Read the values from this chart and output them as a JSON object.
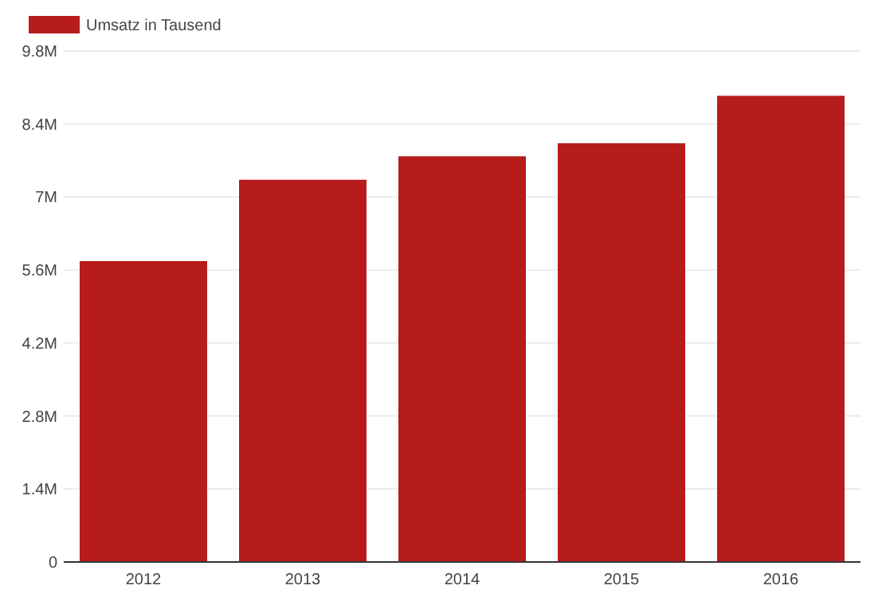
{
  "chart_data": {
    "type": "bar",
    "categories": [
      "2012",
      "2013",
      "2014",
      "2015",
      "2016"
    ],
    "series": [
      {
        "name": "Umsatz in Tausend",
        "color": "#b71c1c",
        "values": [
          5770000,
          7330000,
          7780000,
          8030000,
          8940000
        ]
      }
    ],
    "ylim": [
      0,
      9800000
    ],
    "yticks": [
      0,
      {
        "value": 1400000,
        "label": "1.4M"
      },
      {
        "value": 2800000,
        "label": "2.8M"
      },
      {
        "value": 4200000,
        "label": "4.2M"
      },
      {
        "value": 5600000,
        "label": "5.6M"
      },
      {
        "value": 7000000,
        "label": "7M"
      },
      {
        "value": 8400000,
        "label": "8.4M"
      },
      {
        "value": 9800000,
        "label": "9.8M"
      }
    ],
    "grid": "y",
    "legend": "top left"
  }
}
